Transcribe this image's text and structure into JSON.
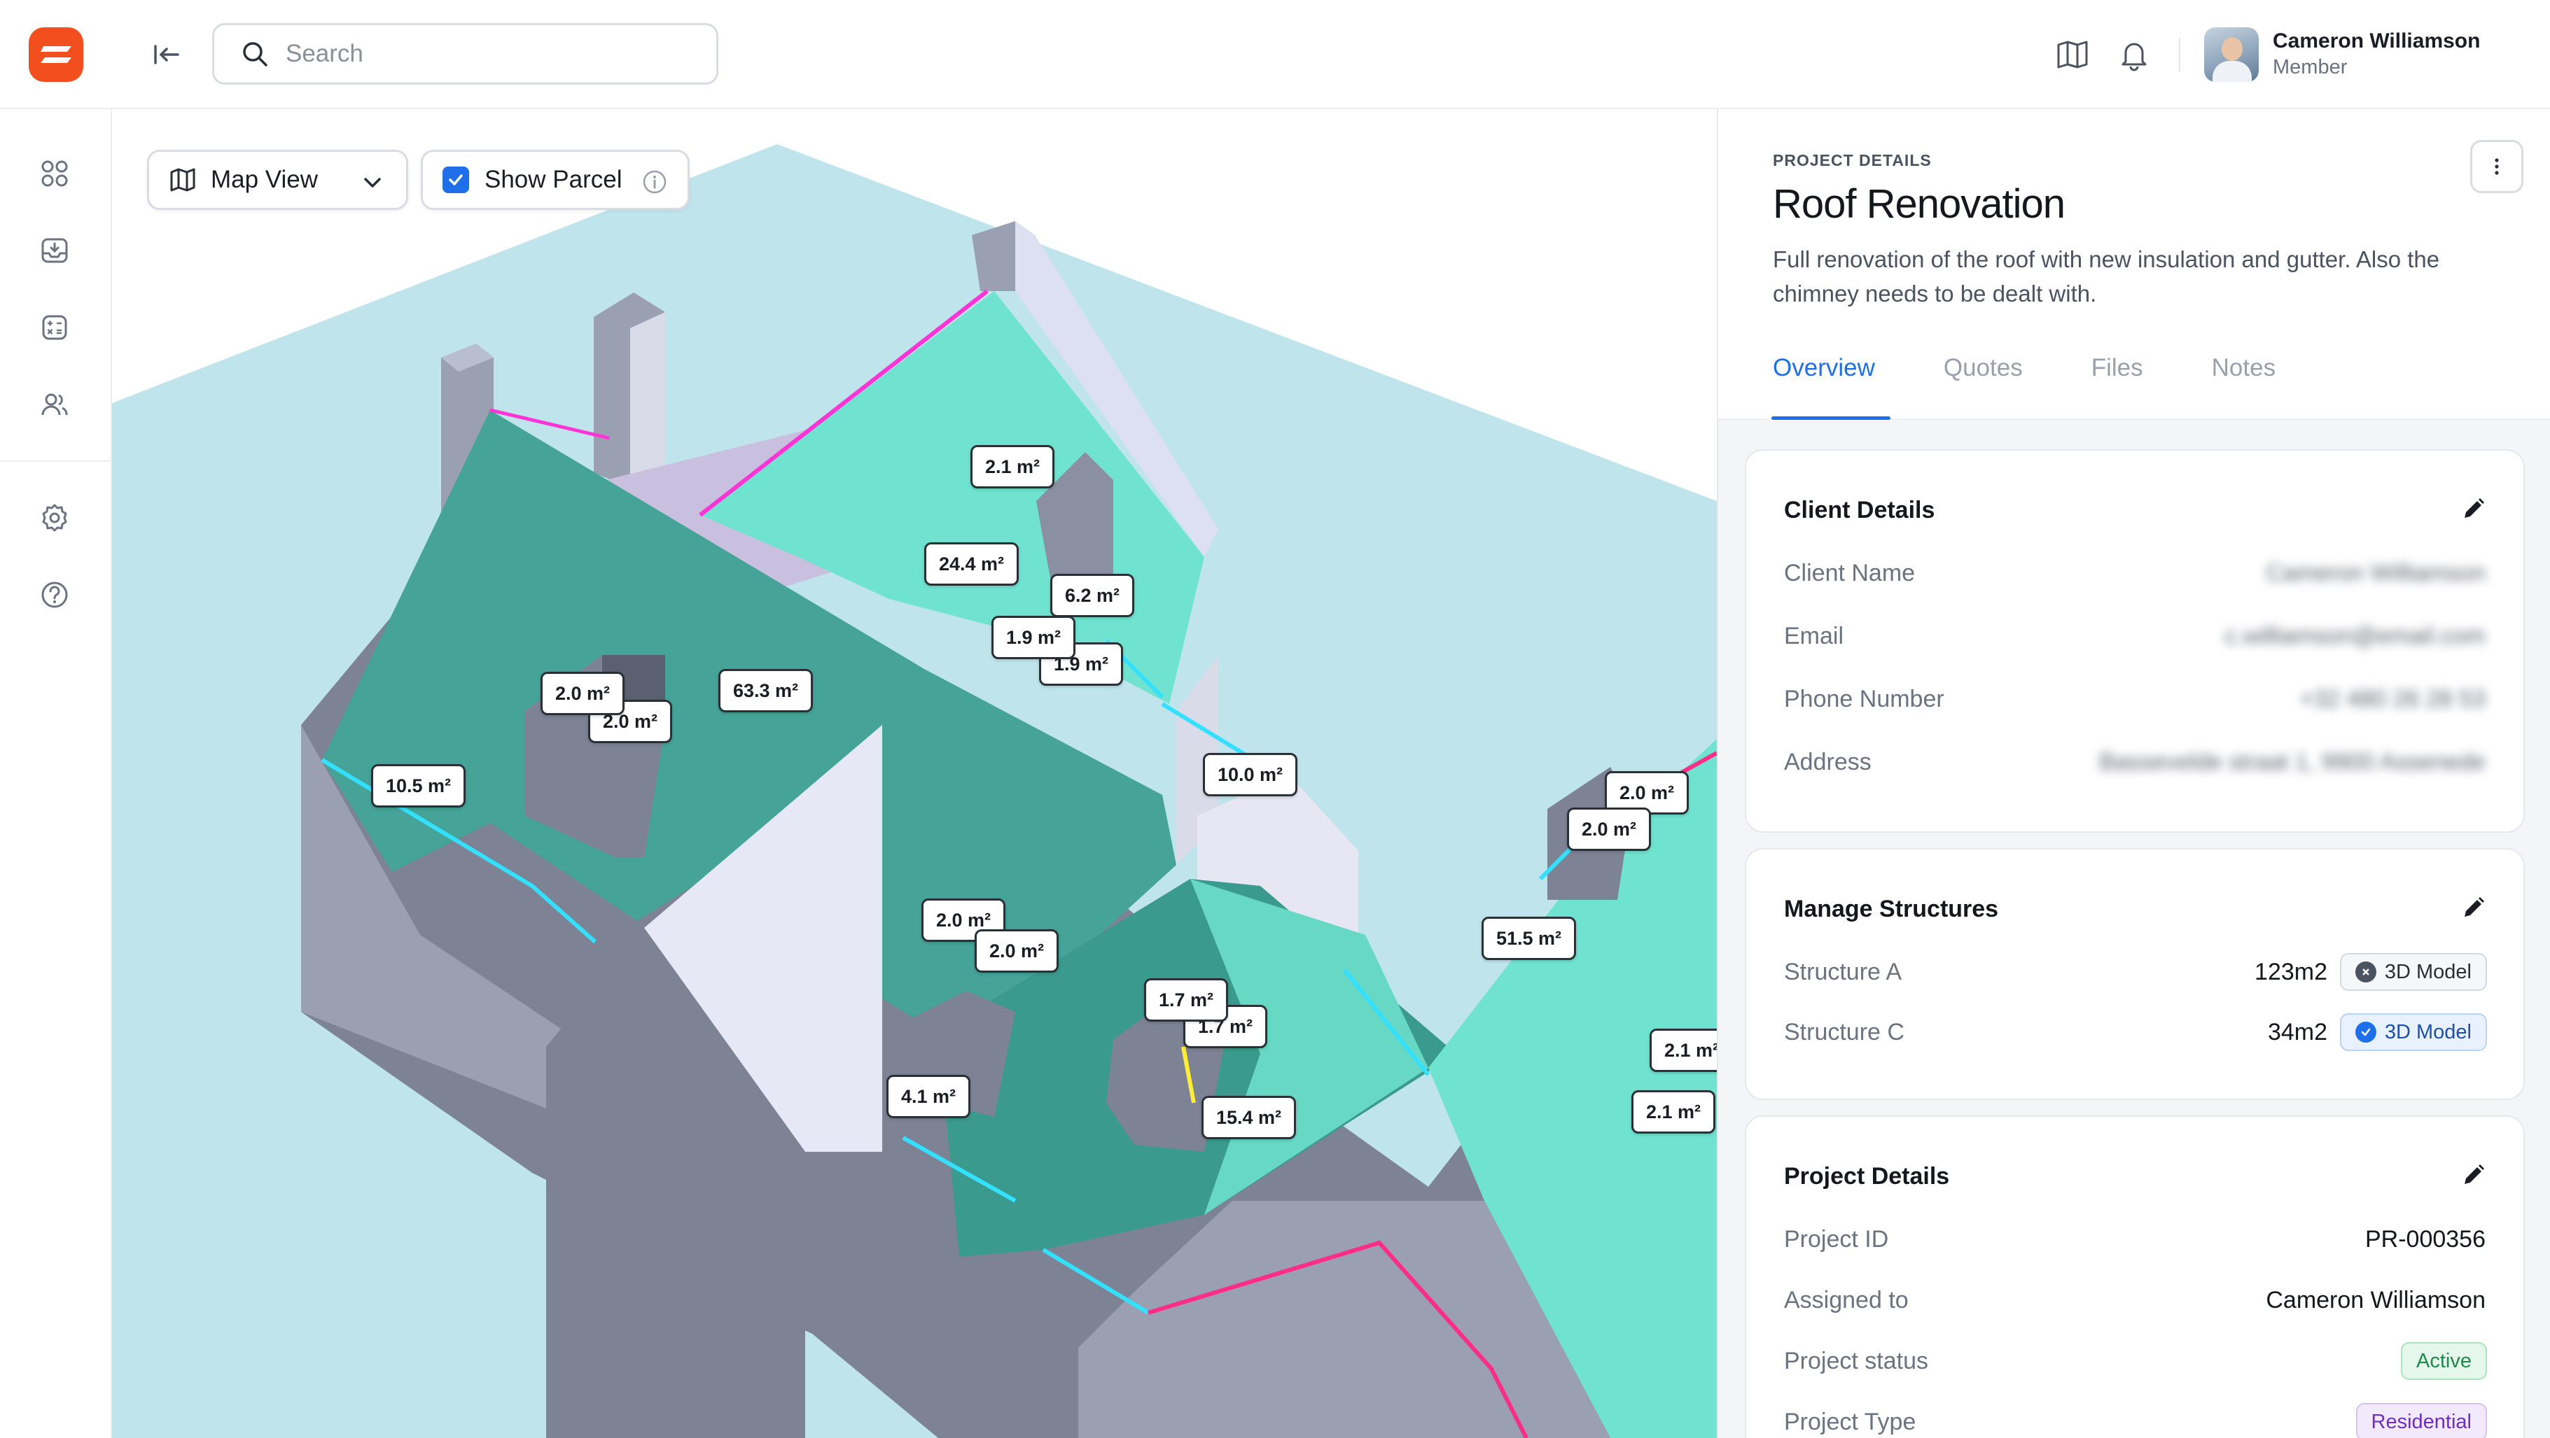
{
  "topbar": {
    "search_placeholder": "Search",
    "icons": [
      "collapse-sidebar-icon",
      "book-icon",
      "bell-icon"
    ],
    "user": {
      "name": "Cameron Williamson",
      "role": "Member"
    }
  },
  "sidebar": {
    "items": [
      {
        "icon": "grid-icon"
      },
      {
        "icon": "inbox-download-icon"
      },
      {
        "icon": "calculator-icon"
      },
      {
        "icon": "users-icon"
      },
      {
        "icon": "gear-icon"
      },
      {
        "icon": "help-icon"
      }
    ]
  },
  "map": {
    "view_select": {
      "label": "Map View"
    },
    "show_parcel": {
      "label": "Show Parcel",
      "checked": true
    },
    "area_labels": [
      "2.1 m²",
      "24.4 m²",
      "6.2 m²",
      "1.9 m²",
      "1.9 m²",
      "63.3 m²",
      "2.0 m²",
      "2.0 m²",
      "10.5 m²",
      "10.0 m²",
      "2.0 m²",
      "2.0 m²",
      "51.5 m²",
      "2.0 m²",
      "2.0 m²",
      "1.7 m²",
      "1.7 m²",
      "15.4 m²",
      "4.1 m²",
      "2.1 m²",
      "2.1 m²"
    ]
  },
  "panel": {
    "eyebrow": "PROJECT DETAILS",
    "title": "Roof Renovation",
    "description": "Full renovation of the roof with new insulation and gutter. Also the chimney needs to be dealt with.",
    "tabs": [
      "Overview",
      "Quotes",
      "Files",
      "Notes"
    ],
    "active_tab": "Overview",
    "client": {
      "title": "Client Details",
      "rows": [
        {
          "label": "Client Name",
          "value": "Cameron Williamson"
        },
        {
          "label": "Email",
          "value": "c.williamson@email.com"
        },
        {
          "label": "Phone Number",
          "value": "+32 480 26 28 53"
        },
        {
          "label": "Address",
          "value": "Bassevelde straat 1, 9900 Assenede"
        }
      ]
    },
    "structures": {
      "title": "Manage Structures",
      "rows": [
        {
          "label": "Structure A",
          "size": "123m2",
          "badge": "3D Model",
          "status": "not-generated"
        },
        {
          "label": "Structure C",
          "size": "34m2",
          "badge": "3D Model",
          "status": "generated"
        }
      ]
    },
    "project": {
      "title": "Project Details",
      "rows": [
        {
          "label": "Project ID",
          "value": "PR-000356"
        },
        {
          "label": "Assigned to",
          "value": "Cameron Williamson"
        },
        {
          "label": "Project status",
          "value": "Active"
        },
        {
          "label": "Project Type",
          "value": "Residential"
        }
      ]
    },
    "colors": {
      "accent": "#1f6feb",
      "brand": "#f24e1e",
      "active": "#1f8a4c",
      "residential": "#6c2fc0"
    }
  }
}
